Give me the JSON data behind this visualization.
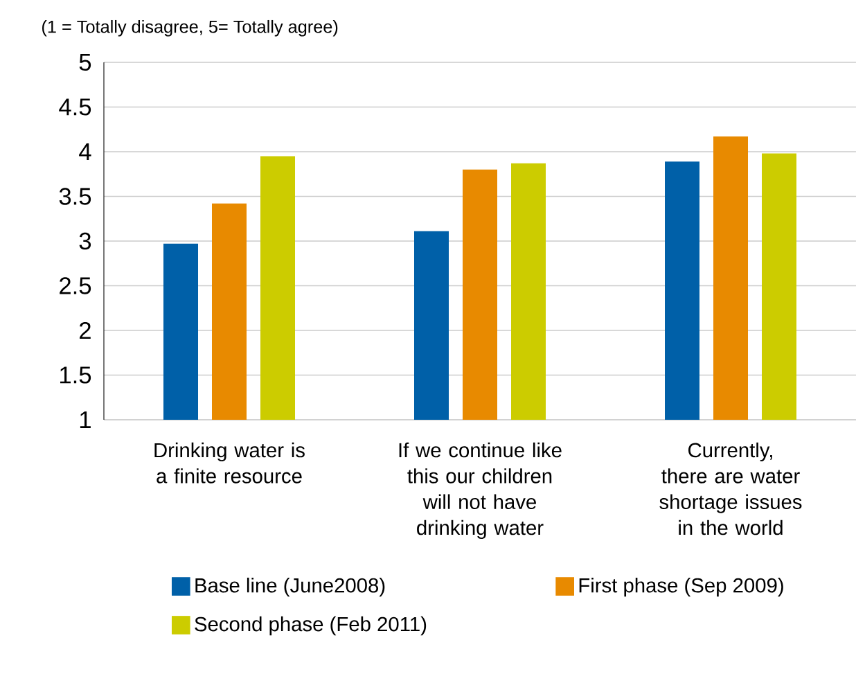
{
  "chart_data": {
    "type": "bar",
    "title": "(1 = Totally disagree, 5= Totally agree)",
    "categories": [
      "Drinking water is a finite resource",
      "If we continue like this our children will not have drinking water",
      "Currently, there are water shortage issues in the world"
    ],
    "series": [
      {
        "name": "Base line (June2008)",
        "color": "#0060a8",
        "values": [
          2.97,
          3.11,
          3.89
        ]
      },
      {
        "name": "First phase (Sep 2009)",
        "color": "#e88a00",
        "values": [
          3.42,
          3.8,
          4.17
        ]
      },
      {
        "name": "Second phase (Feb 2011)",
        "color": "#cccc00",
        "values": [
          3.95,
          3.87,
          3.98
        ]
      }
    ],
    "ylim": [
      1,
      5
    ],
    "yticks": [
      1,
      1.5,
      2,
      2.5,
      3,
      3.5,
      4,
      4.5,
      5
    ],
    "grid": "y",
    "legend": "bottom"
  }
}
